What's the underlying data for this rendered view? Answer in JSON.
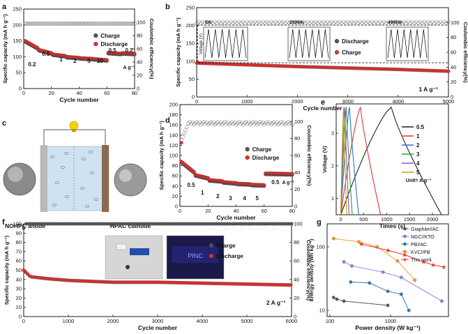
{
  "panels": {
    "a": {
      "letter": "a"
    },
    "b": {
      "letter": "b"
    },
    "c": {
      "letter": "c"
    },
    "d": {
      "letter": "d"
    },
    "e": {
      "letter": "e"
    },
    "f": {
      "letter": "f"
    },
    "g": {
      "letter": "g"
    }
  },
  "schematic": {
    "anode_label": "NOHPC anode",
    "cathode_label": "HPAC cathode"
  },
  "photos": {
    "device_screen_text": "PINC"
  },
  "colors": {
    "charge_marker": "#555555",
    "discharge_marker": "#e03030",
    "gcd": [
      "#222222",
      "#e8322e",
      "#2f6fd6",
      "#2aa14a",
      "#8a55c8",
      "#c8a000"
    ],
    "ragone": [
      "#555555",
      "#9b7fe0",
      "#2a7cc4",
      "#f0a030",
      "#e8322e"
    ]
  },
  "chart_data": [
    {
      "panel": "a",
      "type": "scatter",
      "xlabel": "Cycle number",
      "ylabel": "Specific capacity (mA h g⁻¹)",
      "y2label": "Coulombic efficiency(%)",
      "xlim": [
        0,
        80
      ],
      "ylim": [
        0,
        250
      ],
      "y2lim": [
        0,
        120
      ],
      "xticks": [
        0,
        20,
        40,
        60,
        80
      ],
      "yticks": [
        0,
        50,
        100,
        150,
        200,
        250
      ],
      "y2ticks": [
        0,
        20,
        40,
        60,
        80,
        100
      ],
      "legend": [
        "Charge",
        "Discharge"
      ],
      "rate_labels": [
        "0.2",
        "0.5",
        "1",
        "2",
        "5",
        "10",
        "0.5",
        "0.2"
      ],
      "rate_unit": "A g⁻¹",
      "rate_segments": [
        {
          "label": "0.2",
          "start": 1,
          "end": 10,
          "cap": [
            150,
            128
          ]
        },
        {
          "label": "0.5",
          "start": 11,
          "end": 20,
          "cap": [
            122,
            112
          ]
        },
        {
          "label": "1",
          "start": 21,
          "end": 30,
          "cap": [
            108,
            103
          ]
        },
        {
          "label": "2",
          "start": 31,
          "end": 40,
          "cap": [
            100,
            97
          ]
        },
        {
          "label": "5",
          "start": 41,
          "end": 50,
          "cap": [
            96,
            94
          ]
        },
        {
          "label": "10",
          "start": 51,
          "end": 60,
          "cap": [
            93,
            90
          ]
        },
        {
          "label": "0.5",
          "start": 61,
          "end": 70,
          "cap": [
            113,
            110
          ]
        },
        {
          "label": "0.2",
          "start": 71,
          "end": 80,
          "cap": [
            112,
            110
          ]
        }
      ],
      "ce_percent": 98
    },
    {
      "panel": "b",
      "type": "scatter",
      "xlabel": "Cycle number",
      "ylabel": "Specific capacity (mA h g⁻¹)",
      "y2label": "Coulombic efficiency(%)",
      "xlim": [
        0,
        5000
      ],
      "ylim": [
        0,
        250
      ],
      "y2lim": [
        0,
        120
      ],
      "xticks": [
        0,
        1000,
        2000,
        3000,
        4000,
        5000
      ],
      "yticks": [
        0,
        50,
        100,
        150,
        200,
        250
      ],
      "y2ticks": [
        0,
        20,
        40,
        60,
        80,
        100
      ],
      "legend": [
        "Discharge",
        "Charge"
      ],
      "current_label": "1 A g⁻¹",
      "capacity": [
        [
          0,
          95
        ],
        [
          1000,
          90
        ],
        [
          2000,
          85
        ],
        [
          3000,
          81
        ],
        [
          4000,
          77
        ],
        [
          5000,
          72
        ]
      ],
      "ce_percent": 100,
      "inset": {
        "ylabel": "Voltage (V)",
        "yticks": [
          2,
          3,
          4
        ],
        "cycle_labels": [
          "5th",
          "2500th",
          "4995th"
        ]
      }
    },
    {
      "panel": "d",
      "type": "scatter",
      "xlabel": "Cycle number",
      "ylabel": "Specific capacity (mA h g⁻¹)",
      "y2label": "Coulombic efficiency(%)",
      "xlim": [
        0,
        80
      ],
      "ylim": [
        0,
        200
      ],
      "y2lim": [
        0,
        120
      ],
      "xticks": [
        0,
        20,
        40,
        60,
        80
      ],
      "yticks": [
        0,
        20,
        40,
        60,
        80,
        100,
        120,
        140,
        160,
        180,
        200
      ],
      "y2ticks": [
        0,
        20,
        40,
        60,
        80,
        100
      ],
      "legend": [
        "Charge",
        "Discharge"
      ],
      "rate_labels": [
        "0.5",
        "1",
        "2",
        "3",
        "4",
        "5",
        "0.5"
      ],
      "rate_unit": "A g⁻¹",
      "rate_segments": [
        {
          "label": "0.5",
          "start": 1,
          "end": 10,
          "cap": [
            88,
            68
          ]
        },
        {
          "label": "1",
          "start": 11,
          "end": 20,
          "cap": [
            62,
            56
          ]
        },
        {
          "label": "2",
          "start": 21,
          "end": 30,
          "cap": [
            52,
            50
          ]
        },
        {
          "label": "3",
          "start": 31,
          "end": 40,
          "cap": [
            48,
            46
          ]
        },
        {
          "label": "4",
          "start": 41,
          "end": 50,
          "cap": [
            45,
            44
          ]
        },
        {
          "label": "5",
          "start": 51,
          "end": 60,
          "cap": [
            43,
            42
          ]
        },
        {
          "label": "0.5",
          "start": 61,
          "end": 80,
          "cap": [
            65,
            64
          ]
        }
      ],
      "ce_percent": 98
    },
    {
      "panel": "e",
      "type": "line",
      "xlabel": "Times (s)",
      "ylabel": "Voltage (V)",
      "xlim": [
        -100,
        2350
      ],
      "ylim": [
        0.5,
        3.9
      ],
      "xticks": [
        0,
        500,
        1000,
        1500,
        2000
      ],
      "yticks": [
        1,
        2,
        3
      ],
      "unit_note": "Unit= A g⁻¹",
      "series": [
        {
          "name": "0.5",
          "peak": 1100,
          "end": 2200
        },
        {
          "name": "1",
          "peak": 430,
          "end": 870
        },
        {
          "name": "2",
          "peak": 190,
          "end": 390
        },
        {
          "name": "3",
          "peak": 120,
          "end": 250
        },
        {
          "name": "4",
          "peak": 85,
          "end": 180
        },
        {
          "name": "5",
          "peak": 60,
          "end": 130
        }
      ],
      "v_start": 0.5,
      "v_peak": 3.8
    },
    {
      "panel": "f",
      "type": "scatter",
      "xlabel": "Cycle number",
      "ylabel": "Specific capacity (mA h g⁻¹)",
      "y2label": "Coulombic efficiency(%)",
      "xlim": [
        0,
        6000
      ],
      "ylim": [
        0,
        100
      ],
      "y2lim": [
        0,
        100
      ],
      "xticks": [
        0,
        1000,
        2000,
        3000,
        4000,
        5000,
        6000
      ],
      "yticks": [
        0,
        10,
        20,
        30,
        40,
        50,
        60,
        70,
        80,
        90,
        100
      ],
      "y2ticks": [
        0,
        20,
        40,
        60,
        80,
        100
      ],
      "legend": [
        "Charge",
        "Discharge"
      ],
      "current_label": "2 A g⁻¹",
      "capacity": [
        [
          0,
          50
        ],
        [
          150,
          43
        ],
        [
          500,
          41
        ],
        [
          1000,
          39
        ],
        [
          2000,
          37
        ],
        [
          3000,
          37
        ],
        [
          4000,
          36
        ],
        [
          5000,
          35
        ],
        [
          6000,
          34
        ]
      ],
      "ce_percent": 100
    },
    {
      "panel": "g",
      "type": "line",
      "xlabel": "Power density (W kg⁻¹)",
      "ylabel": "Energy density (Wh kg⁻¹)",
      "xscale": "log",
      "yscale": "log",
      "xlim": [
        90,
        9000
      ],
      "ylim": [
        8,
        230
      ],
      "xticks": [
        100,
        1000
      ],
      "xtick_labels": [
        "100",
        "1000"
      ],
      "yticks": [
        10,
        100
      ],
      "ytick_labels": [
        "10",
        "100"
      ],
      "series": [
        {
          "name": "Graphite//AC",
          "points": [
            [
              115,
              16
            ],
            [
              130,
              15
            ],
            [
              170,
              14
            ],
            [
              900,
              12
            ]
          ]
        },
        {
          "name": "NGC//KTO",
          "points": [
            [
              170,
              58
            ],
            [
              230,
              50
            ],
            [
              750,
              40
            ],
            [
              1500,
              33
            ],
            [
              7000,
              14
            ]
          ]
        },
        {
          "name": "PB//AC",
          "points": [
            [
              220,
              28
            ],
            [
              450,
              27
            ],
            [
              900,
              20
            ],
            [
              1500,
              18
            ],
            [
              2000,
              10
            ]
          ]
        },
        {
          "name": "KVC//PB",
          "points": [
            [
              115,
              135
            ],
            [
              300,
              120
            ],
            [
              600,
              100
            ],
            [
              1300,
              60
            ],
            [
              2500,
              30
            ]
          ]
        },
        {
          "name": "This work",
          "points": [
            [
              330,
              110
            ],
            [
              900,
              88
            ],
            [
              1700,
              75
            ],
            [
              3500,
              58
            ],
            [
              5000,
              52
            ],
            [
              7500,
              48
            ]
          ]
        }
      ]
    }
  ]
}
